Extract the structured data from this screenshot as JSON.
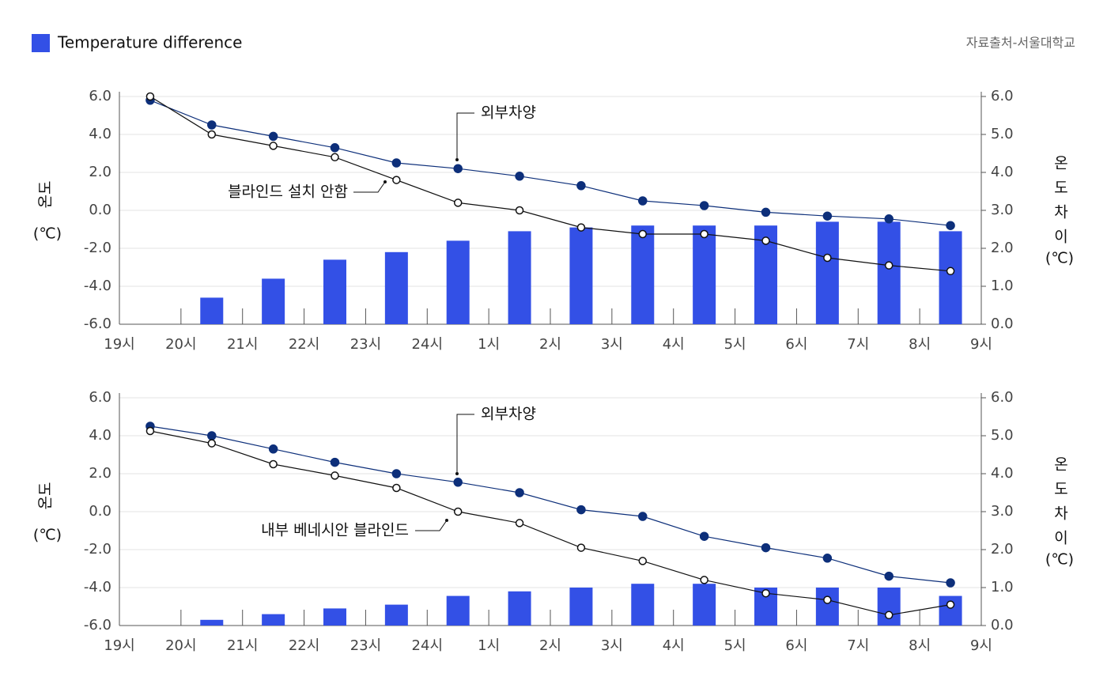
{
  "legend": {
    "label": "Temperature difference",
    "color": "#3350e6"
  },
  "source": "자료출처-서울대학교",
  "chart_data": [
    {
      "type": "combo",
      "y_label": "온도",
      "y_label_unit": "(℃)",
      "y2_label": "온도차이",
      "y2_label_unit": "(℃)",
      "xlim": [
        0,
        14
      ],
      "xticks": [
        {
          "value": 0,
          "label": "19시"
        },
        {
          "value": 1,
          "label": "20시"
        },
        {
          "value": 2,
          "label": "21시"
        },
        {
          "value": 3,
          "label": "22시"
        },
        {
          "value": 4,
          "label": "23시"
        },
        {
          "value": 5,
          "label": "24시"
        },
        {
          "value": 6,
          "label": "1시"
        },
        {
          "value": 7,
          "label": "2시"
        },
        {
          "value": 8,
          "label": "3시"
        },
        {
          "value": 9,
          "label": "4시"
        },
        {
          "value": 10,
          "label": "5시"
        },
        {
          "value": 11,
          "label": "6시"
        },
        {
          "value": 12,
          "label": "7시"
        },
        {
          "value": 13,
          "label": "8시"
        },
        {
          "value": 14,
          "label": "9시"
        }
      ],
      "ylim": [
        -6,
        6
      ],
      "yticks": [
        {
          "value": -6,
          "label": "-6.0"
        },
        {
          "value": -4,
          "label": "-4.0"
        },
        {
          "value": -2,
          "label": "-2.0"
        },
        {
          "value": 0,
          "label": "0.0"
        },
        {
          "value": 2,
          "label": "2.0"
        },
        {
          "value": 4,
          "label": "4.0"
        },
        {
          "value": 6,
          "label": "6.0"
        }
      ],
      "y2lim": [
        0,
        6
      ],
      "y2ticks": [
        {
          "value": 0,
          "label": "0.0"
        },
        {
          "value": 1,
          "label": "1.0"
        },
        {
          "value": 2,
          "label": "2.0"
        },
        {
          "value": 3,
          "label": "3.0"
        },
        {
          "value": 4,
          "label": "4.0"
        },
        {
          "value": 5,
          "label": "5.0"
        },
        {
          "value": 6,
          "label": "6.0"
        }
      ],
      "grid": true,
      "x": [
        0.5,
        1.5,
        2.5,
        3.5,
        4.5,
        5.5,
        6.5,
        7.5,
        8.5,
        9.5,
        10.5,
        11.5,
        12.5,
        13.5
      ],
      "series": [
        {
          "name": "외부차양",
          "type": "line",
          "marker": "filled",
          "color": "#0d2f7a",
          "values": [
            5.8,
            4.5,
            3.9,
            3.3,
            2.5,
            2.2,
            1.8,
            1.3,
            0.5,
            0.25,
            -0.1,
            -0.3,
            -0.45,
            -0.8
          ]
        },
        {
          "name": "블라인드 설치 안함",
          "type": "line",
          "marker": "hollow",
          "color": "#111111",
          "values": [
            6.0,
            4.0,
            3.4,
            2.8,
            1.6,
            0.4,
            0.0,
            -0.9,
            -1.25,
            -1.25,
            -1.6,
            -2.5,
            -2.9,
            -3.2
          ]
        },
        {
          "type": "bar",
          "axis": "y2",
          "color": "#3350e6",
          "values": [
            0,
            0.7,
            1.2,
            1.7,
            1.9,
            2.2,
            2.45,
            2.55,
            2.6,
            2.6,
            2.6,
            2.7,
            2.7,
            2.45
          ]
        }
      ]
    },
    {
      "type": "combo",
      "y_label": "온도",
      "y_label_unit": "(℃)",
      "y2_label": "온도차이",
      "y2_label_unit": "(℃)",
      "xlim": [
        0,
        14
      ],
      "xticks": [
        {
          "value": 0,
          "label": "19시"
        },
        {
          "value": 1,
          "label": "20시"
        },
        {
          "value": 2,
          "label": "21시"
        },
        {
          "value": 3,
          "label": "22시"
        },
        {
          "value": 4,
          "label": "23시"
        },
        {
          "value": 5,
          "label": "24시"
        },
        {
          "value": 6,
          "label": "1시"
        },
        {
          "value": 7,
          "label": "2시"
        },
        {
          "value": 8,
          "label": "3시"
        },
        {
          "value": 9,
          "label": "4시"
        },
        {
          "value": 10,
          "label": "5시"
        },
        {
          "value": 11,
          "label": "6시"
        },
        {
          "value": 12,
          "label": "7시"
        },
        {
          "value": 13,
          "label": "8시"
        },
        {
          "value": 14,
          "label": "9시"
        }
      ],
      "ylim": [
        -6,
        6
      ],
      "yticks": [
        {
          "value": -6,
          "label": "-6.0"
        },
        {
          "value": -4,
          "label": "-4.0"
        },
        {
          "value": -2,
          "label": "-2.0"
        },
        {
          "value": 0,
          "label": "0.0"
        },
        {
          "value": 2,
          "label": "2.0"
        },
        {
          "value": 4,
          "label": "4.0"
        },
        {
          "value": 6,
          "label": "6.0"
        }
      ],
      "y2lim": [
        0,
        6
      ],
      "y2ticks": [
        {
          "value": 0,
          "label": "0.0"
        },
        {
          "value": 1,
          "label": "1.0"
        },
        {
          "value": 2,
          "label": "2.0"
        },
        {
          "value": 3,
          "label": "3.0"
        },
        {
          "value": 4,
          "label": "4.0"
        },
        {
          "value": 5,
          "label": "5.0"
        },
        {
          "value": 6,
          "label": "6.0"
        }
      ],
      "grid": true,
      "x": [
        0.5,
        1.5,
        2.5,
        3.5,
        4.5,
        5.5,
        6.5,
        7.5,
        8.5,
        9.5,
        10.5,
        11.5,
        12.5,
        13.5
      ],
      "series": [
        {
          "name": "외부차양",
          "type": "line",
          "marker": "filled",
          "color": "#0d2f7a",
          "values": [
            4.5,
            4.0,
            3.3,
            2.6,
            2.0,
            1.55,
            1.0,
            0.1,
            -0.25,
            -1.3,
            -1.9,
            -2.45,
            -3.4,
            -3.75
          ]
        },
        {
          "name": "내부 베네시안 블라인드",
          "type": "line",
          "marker": "hollow",
          "color": "#111111",
          "values": [
            4.25,
            3.6,
            2.5,
            1.9,
            1.25,
            0.0,
            -0.6,
            -1.9,
            -2.6,
            -3.6,
            -4.3,
            -4.65,
            -5.45,
            -4.9
          ]
        },
        {
          "type": "bar",
          "axis": "y2",
          "color": "#3350e6",
          "values": [
            0,
            0.15,
            0.3,
            0.45,
            0.55,
            0.78,
            0.9,
            1.0,
            1.1,
            1.1,
            1.0,
            1.0,
            1.0,
            0.78
          ]
        }
      ]
    }
  ]
}
